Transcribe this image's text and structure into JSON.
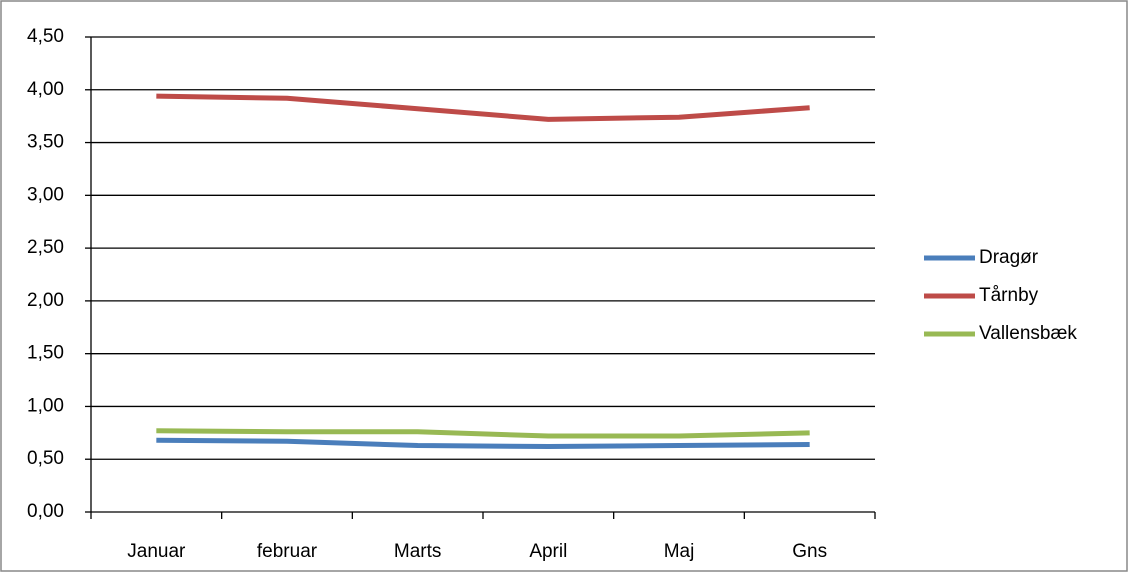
{
  "chart_data": {
    "type": "line",
    "categories": [
      "Januar",
      "februar",
      "Marts",
      "April",
      "Maj",
      "Gns"
    ],
    "series": [
      {
        "name": "Dragør",
        "color": "#4a7ebb",
        "values": [
          0.68,
          0.67,
          0.63,
          0.62,
          0.63,
          0.64
        ]
      },
      {
        "name": "Tårnby",
        "color": "#be4b48",
        "values": [
          3.94,
          3.92,
          3.82,
          3.72,
          3.74,
          3.83
        ]
      },
      {
        "name": "Vallensbæk",
        "color": "#98b954",
        "values": [
          0.77,
          0.76,
          0.76,
          0.72,
          0.72,
          0.75
        ]
      }
    ],
    "ylim": [
      0,
      4.5
    ],
    "yticks": [
      {
        "value": 0,
        "label": "0,00"
      },
      {
        "value": 0.5,
        "label": "0,50"
      },
      {
        "value": 1,
        "label": "1,00"
      },
      {
        "value": 1.5,
        "label": "1,50"
      },
      {
        "value": 2,
        "label": "2,00"
      },
      {
        "value": 2.5,
        "label": "2,50"
      },
      {
        "value": 3,
        "label": "3,00"
      },
      {
        "value": 3.5,
        "label": "3,50"
      },
      {
        "value": 4,
        "label": "4,00"
      },
      {
        "value": 4.5,
        "label": "4,50"
      }
    ],
    "grid": true,
    "legend": "right"
  }
}
